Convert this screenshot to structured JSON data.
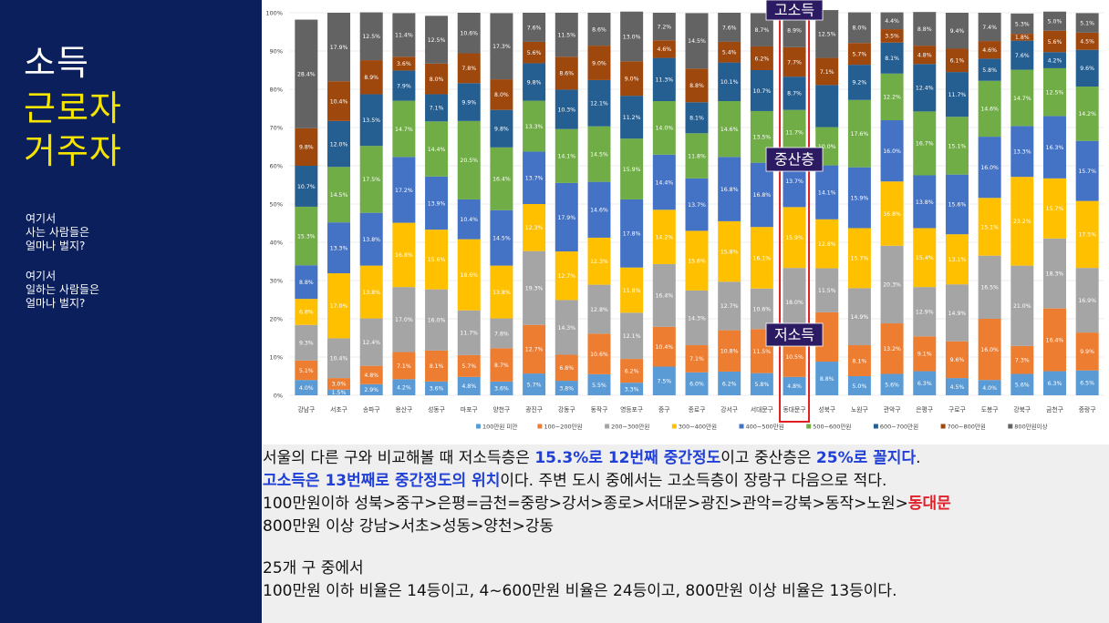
{
  "sidebar": {
    "title_lines": [
      "소득",
      "근로자",
      "거주자"
    ],
    "paragraph1": [
      "여기서",
      "사는 사람들은",
      "얼마나 벌지?"
    ],
    "paragraph2": [
      "여기서",
      "일하는 사람들은",
      "얼마나 벌지?"
    ]
  },
  "callouts": {
    "high": "고소득",
    "mid": "중산층",
    "low": "저소득"
  },
  "text": {
    "line1_a": "서울의 다른 구와 비교해볼 때 저소득층은 ",
    "line1_b": "15.3%로 12번째 중간정도",
    "line1_c": "이고 중산층은 ",
    "line1_d": "25%로 꼴지다",
    "line1_e": ".",
    "line2_a": "고소득은 13번째로 중간정도의 위치",
    "line2_b": "이다. 주변 도시 중에서는 고소득층이 장랑구 다음으로 적다.",
    "line3_a": "100만원이하 성북>중구>은평=금천=중랑>강서>종로>서대문>광진>관악=강북>동작>노원>",
    "line3_b": "동대문",
    "line4": "800만원 이상 강남>서초>성동>양천>강동",
    "line5": "25개 구 중에서",
    "line6": "100만원 이하 비율은 14등이고, 4~600만원 비율은 24등이고, 800만원 이상 비율은 13등이다."
  },
  "chart_data": {
    "type": "bar",
    "stacked": true,
    "ylim": [
      0,
      100
    ],
    "yticks": [
      "0%",
      "10%",
      "20%",
      "30%",
      "40%",
      "50%",
      "60%",
      "70%",
      "80%",
      "90%",
      "100%"
    ],
    "highlight_category": "동대문구",
    "legend_position": "bottom",
    "categories": [
      "강남구",
      "서초구",
      "송파구",
      "용산구",
      "성동구",
      "마포구",
      "양천구",
      "광진구",
      "강동구",
      "동작구",
      "영등포구",
      "중구",
      "종로구",
      "강서구",
      "서대문구",
      "동대문구",
      "성북구",
      "노원구",
      "관악구",
      "은평구",
      "구로구",
      "도봉구",
      "강북구",
      "금천구",
      "중랑구"
    ],
    "series": [
      {
        "name": "100만원 미만",
        "color": "#5b9bd5",
        "values": [
          4.0,
          1.5,
          2.9,
          4.2,
          3.6,
          4.8,
          3.6,
          5.7,
          3.8,
          5.5,
          3.3,
          7.5,
          6.0,
          6.2,
          5.8,
          4.8,
          8.8,
          5.0,
          5.6,
          6.3,
          4.5,
          4.0,
          5.6,
          6.3,
          6.5
        ],
        "labels": [
          "4.0%",
          "1.5%",
          "2.9%",
          "4.2%",
          "3.6%",
          "4.8%",
          "3.6%",
          "5.7%",
          "3.8%",
          "5.5%",
          "3.3%",
          "7.5%",
          "6.0%",
          "6.2%",
          "5.8%",
          "4.8%",
          "8.8%",
          "5.0%",
          "5.6%",
          "6.3%",
          "4.5%",
          "4.0%",
          "5.6%",
          "6.3%",
          "6.5%"
        ]
      },
      {
        "name": "100~200만원",
        "color": "#ed7d31",
        "values": [
          5.1,
          3.0,
          4.8,
          7.1,
          8.1,
          5.7,
          8.7,
          12.7,
          6.8,
          10.6,
          6.2,
          10.4,
          7.1,
          10.8,
          11.5,
          10.5,
          12.9,
          8.1,
          13.2,
          9.1,
          9.6,
          16.0,
          7.3,
          16.4,
          9.9
        ],
        "labels": [
          "5.1%",
          "3.0%",
          "4.8%",
          "7.1%",
          "8.1%",
          "5.7%",
          "8.7%",
          "12.7%",
          "6.8%",
          "10.6%",
          "6.2%",
          "10.4%",
          "7.1%",
          "10.8%",
          "11.5%",
          "10.5%",
          "",
          "8.1%",
          "13.2%",
          "9.1%",
          "9.6%",
          "16.0%",
          "7.3%",
          "16.4%",
          "9.9%"
        ]
      },
      {
        "name": "200~300만원",
        "color": "#a5a5a5",
        "values": [
          9.3,
          10.4,
          12.4,
          17.0,
          16.0,
          11.7,
          7.8,
          19.3,
          14.3,
          12.8,
          12.1,
          16.4,
          14.3,
          12.7,
          10.6,
          18.0,
          11.5,
          14.9,
          20.3,
          12.9,
          14.9,
          16.5,
          21.0,
          18.3,
          16.9
        ],
        "labels": [
          "9.3%",
          "10.4%",
          "12.4%",
          "17.0%",
          "16.0%",
          "11.7%",
          "7.8%",
          "19.3%",
          "14.3%",
          "12.8%",
          "12.1%",
          "16.4%",
          "14.3%",
          "12.7%",
          "10.6%",
          "18.0%",
          "11.5%",
          "14.9%",
          "20.3%",
          "12.9%",
          "14.9%",
          "16.5%",
          "21.0%",
          "18.3%",
          "16.9%"
        ]
      },
      {
        "name": "300~400만원",
        "color": "#ffc000",
        "values": [
          6.8,
          17.0,
          13.8,
          16.8,
          15.6,
          18.6,
          13.8,
          12.3,
          12.7,
          12.3,
          11.8,
          14.2,
          15.6,
          15.8,
          16.1,
          15.9,
          12.8,
          15.7,
          16.8,
          15.4,
          13.1,
          15.1,
          23.2,
          15.7,
          17.5
        ],
        "labels": [
          "6.8%",
          "17.0%",
          "13.8%",
          "16.8%",
          "15.6%",
          "18.6%",
          "13.8%",
          "12.3%",
          "12.7%",
          "12.3%",
          "11.8%",
          "14.2%",
          "15.6%",
          "15.8%",
          "16.1%",
          "15.9%",
          "12.8%",
          "15.7%",
          "16.8%",
          "15.4%",
          "13.1%",
          "15.1%",
          "23.2%",
          "15.7%",
          "17.5%"
        ]
      },
      {
        "name": "400~500만원",
        "color": "#4472c4",
        "values": [
          8.8,
          13.3,
          13.8,
          17.2,
          13.9,
          10.4,
          14.5,
          13.7,
          17.9,
          14.6,
          17.8,
          14.4,
          13.7,
          16.8,
          16.8,
          13.7,
          14.1,
          15.9,
          16.0,
          13.8,
          15.6,
          16.0,
          13.3,
          16.3,
          15.7
        ],
        "labels": [
          "8.8%",
          "13.3%",
          "13.8%",
          "17.2%",
          "13.9%",
          "10.4%",
          "14.5%",
          "13.7%",
          "17.9%",
          "14.6%",
          "17.8%",
          "14.4%",
          "13.7%",
          "16.8%",
          "16.8%",
          "13.7%",
          "14.1%",
          "15.9%",
          "16.0%",
          "13.8%",
          "15.6%",
          "16.0%",
          "13.3%",
          "16.3%",
          "15.7%"
        ]
      },
      {
        "name": "500~600만원",
        "color": "#70ad47",
        "values": [
          15.3,
          14.5,
          17.5,
          14.7,
          14.4,
          20.5,
          16.4,
          13.3,
          14.1,
          14.5,
          15.9,
          14.0,
          11.8,
          14.6,
          13.5,
          11.7,
          10.0,
          17.6,
          12.2,
          16.7,
          15.1,
          14.6,
          14.7,
          12.5,
          14.2
        ],
        "labels": [
          "15.3%",
          "14.5%",
          "17.5%",
          "14.7%",
          "14.4%",
          "20.5%",
          "16.4%",
          "13.3%",
          "14.1%",
          "14.5%",
          "15.9%",
          "14.0%",
          "11.8%",
          "14.6%",
          "13.5%",
          "11.7%",
          "10.0%",
          "17.6%",
          "12.2%",
          "16.7%",
          "15.1%",
          "14.6%",
          "14.7%",
          "12.5%",
          "14.2%"
        ]
      },
      {
        "name": "600~700만원",
        "color": "#255e91",
        "values": [
          10.7,
          12.0,
          13.5,
          7.9,
          7.1,
          9.9,
          9.8,
          9.8,
          10.3,
          12.1,
          11.2,
          11.3,
          8.1,
          10.1,
          10.7,
          8.7,
          11.0,
          9.2,
          8.1,
          12.4,
          11.7,
          5.8,
          7.6,
          4.2,
          9.6
        ],
        "labels": [
          "10.7%",
          "12.0%",
          "13.5%",
          "7.9%",
          "7.1%",
          "9.9%",
          "9.8%",
          "9.8%",
          "10.3%",
          "12.1%",
          "11.2%",
          "11.3%",
          "8.1%",
          "10.1%",
          "10.7%",
          "8.7%",
          "",
          "9.2%",
          "8.1%",
          "12.4%",
          "11.7%",
          "5.8%",
          "7.6%",
          "4.2%",
          "9.6%"
        ]
      },
      {
        "name": "700~800만원",
        "color": "#9e480e",
        "values": [
          9.8,
          10.4,
          8.9,
          3.6,
          8.0,
          7.8,
          8.0,
          5.6,
          8.6,
          9.0,
          9.0,
          4.6,
          8.8,
          5.4,
          6.2,
          7.7,
          7.1,
          5.7,
          3.5,
          4.8,
          6.1,
          4.6,
          1.8,
          5.6,
          4.5
        ],
        "labels": [
          "9.8%",
          "10.4%",
          "8.9%",
          "3.6%",
          "8.0%",
          "7.8%",
          "8.0%",
          "5.6%",
          "8.6%",
          "9.0%",
          "9.0%",
          "4.6%",
          "8.8%",
          "5.4%",
          "6.2%",
          "7.7%",
          "7.1%",
          "5.7%",
          "3.5%",
          "4.8%",
          "6.1%",
          "4.6%",
          "1.8%",
          "5.6%",
          "4.5%"
        ]
      },
      {
        "name": "800만원이상",
        "color": "#636363",
        "values": [
          28.4,
          17.9,
          12.5,
          11.4,
          12.5,
          10.6,
          17.3,
          7.6,
          11.5,
          8.6,
          13.0,
          7.2,
          14.5,
          7.6,
          8.7,
          8.9,
          12.5,
          8.0,
          4.4,
          8.8,
          9.4,
          7.4,
          5.3,
          5.0,
          5.1
        ],
        "labels": [
          "28.4%",
          "17.9%",
          "12.5%",
          "11.4%",
          "12.5%",
          "10.6%",
          "17.3%",
          "7.6%",
          "11.5%",
          "8.6%",
          "13.0%",
          "7.2%",
          "14.5%",
          "7.6%",
          "8.7%",
          "8.9%",
          "12.5%",
          "8.0%",
          "4.4%",
          "8.8%",
          "9.4%",
          "7.4%",
          "5.3%",
          "5.0%",
          "5.1%"
        ]
      }
    ]
  }
}
